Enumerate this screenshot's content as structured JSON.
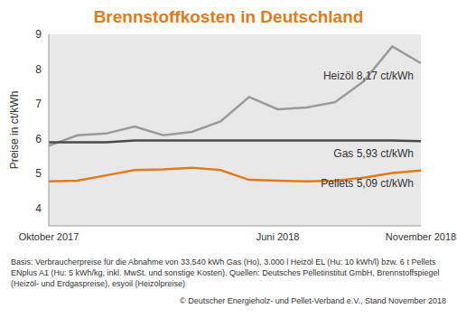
{
  "chart_data": {
    "type": "line",
    "title": "Brennstoffkosten in Deutschland",
    "y_label": "Preise in ct/kWh",
    "categories": [
      "Oktober 2017",
      null,
      null,
      null,
      null,
      null,
      null,
      null,
      "Juni 2018",
      null,
      null,
      null,
      null,
      "November 2018"
    ],
    "series": [
      {
        "name": "Heizöl 8,17 ct/kWh",
        "color": "#9a9a9a",
        "values": [
          5.8,
          6.1,
          6.15,
          6.35,
          6.1,
          6.2,
          6.5,
          7.2,
          6.85,
          6.9,
          7.05,
          7.65,
          8.65,
          8.17
        ]
      },
      {
        "name": "Gas 5,93 ct/kWh",
        "color": "#4a4a4a",
        "values": [
          5.9,
          5.9,
          5.9,
          5.95,
          5.95,
          5.95,
          5.95,
          5.95,
          5.95,
          5.95,
          5.95,
          5.95,
          5.95,
          5.93
        ]
      },
      {
        "name": "Pellets 5,09 ct/kWh",
        "color": "#e07b1a",
        "values": [
          4.78,
          4.8,
          4.95,
          5.1,
          5.12,
          5.17,
          5.1,
          4.82,
          4.8,
          4.78,
          4.8,
          4.88,
          5.02,
          5.09
        ]
      }
    ],
    "ylim": [
      3.5,
      9
    ],
    "yticks": [
      4,
      5,
      6,
      7,
      8,
      9
    ],
    "grid": false,
    "notes": [
      "Basis: Verbraucherpreise für die Abnahme von 33.540 kWh Gas (Ho), 3.000 l Heizöl EL (Hu: 10 kWh/l) bzw. 6 t Pellets ENplus A1 (Hu: 5 kWh/kg, inkl. MwSt. und sonstige Kosten). Quellen: Deutsches Pelletinstitut GmbH, Brennstoffspiegel (Heizöl- und Erdgaspreise), esyoil (Heizölpreise)",
      "© Deutscher Energieholz- und Pellet-Verband e.V., Stand November 2018"
    ]
  }
}
